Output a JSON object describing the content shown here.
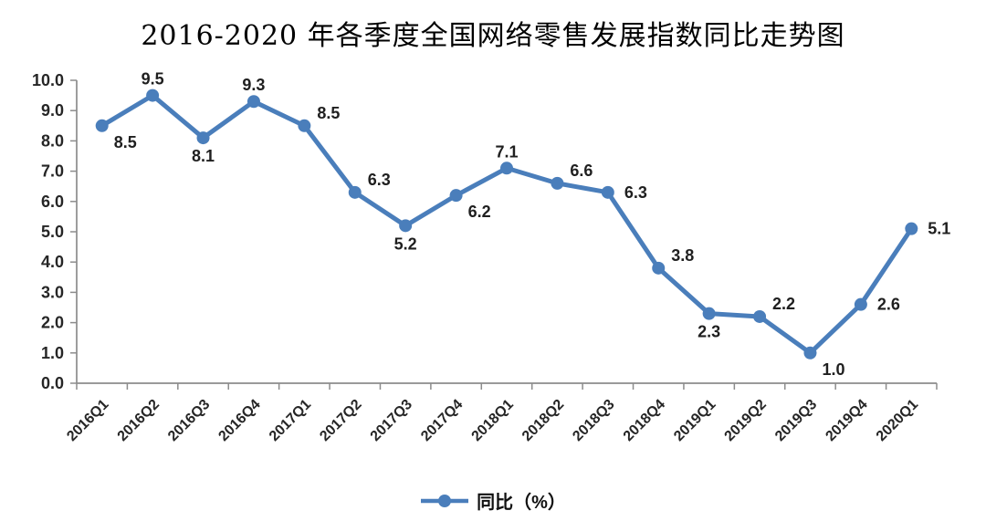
{
  "title": "2016-2020 年各季度全国网络零售发展指数同比走势图",
  "legend": {
    "label": "同比（%）"
  },
  "colors": {
    "series_line": "#4a7ebb",
    "axis_line": "#8c8c8c",
    "tick_label": "#262626",
    "data_label": "#1f1f1f",
    "x_label": "#262626"
  },
  "chart_data": {
    "type": "line",
    "title": "2016-2020 年各季度全国网络零售发展指数同比走势图",
    "categories": [
      "2016Q1",
      "2016Q2",
      "2016Q3",
      "2016Q4",
      "2017Q1",
      "2017Q2",
      "2017Q3",
      "2017Q4",
      "2018Q1",
      "2018Q2",
      "2018Q3",
      "2018Q4",
      "2019Q1",
      "2019Q2",
      "2019Q3",
      "2019Q4",
      "2020Q1"
    ],
    "series": [
      {
        "name": "同比（%）",
        "values": [
          8.5,
          9.5,
          8.1,
          9.3,
          8.5,
          6.3,
          5.2,
          6.2,
          7.1,
          6.6,
          6.3,
          3.8,
          2.3,
          2.2,
          1.0,
          2.6,
          5.1
        ]
      }
    ],
    "ylim": [
      0,
      10
    ],
    "y_tick_step": 1,
    "y_tick_decimals": 1,
    "grid": false,
    "legend_position": "bottom",
    "marker": "circle",
    "data_labels": true,
    "label_positions": [
      "below-right",
      "above",
      "below",
      "above",
      "above-right",
      "above-right",
      "below",
      "below-right",
      "above",
      "above-right",
      "right",
      "above-right",
      "below",
      "above-right",
      "below-right",
      "right",
      "right"
    ]
  }
}
